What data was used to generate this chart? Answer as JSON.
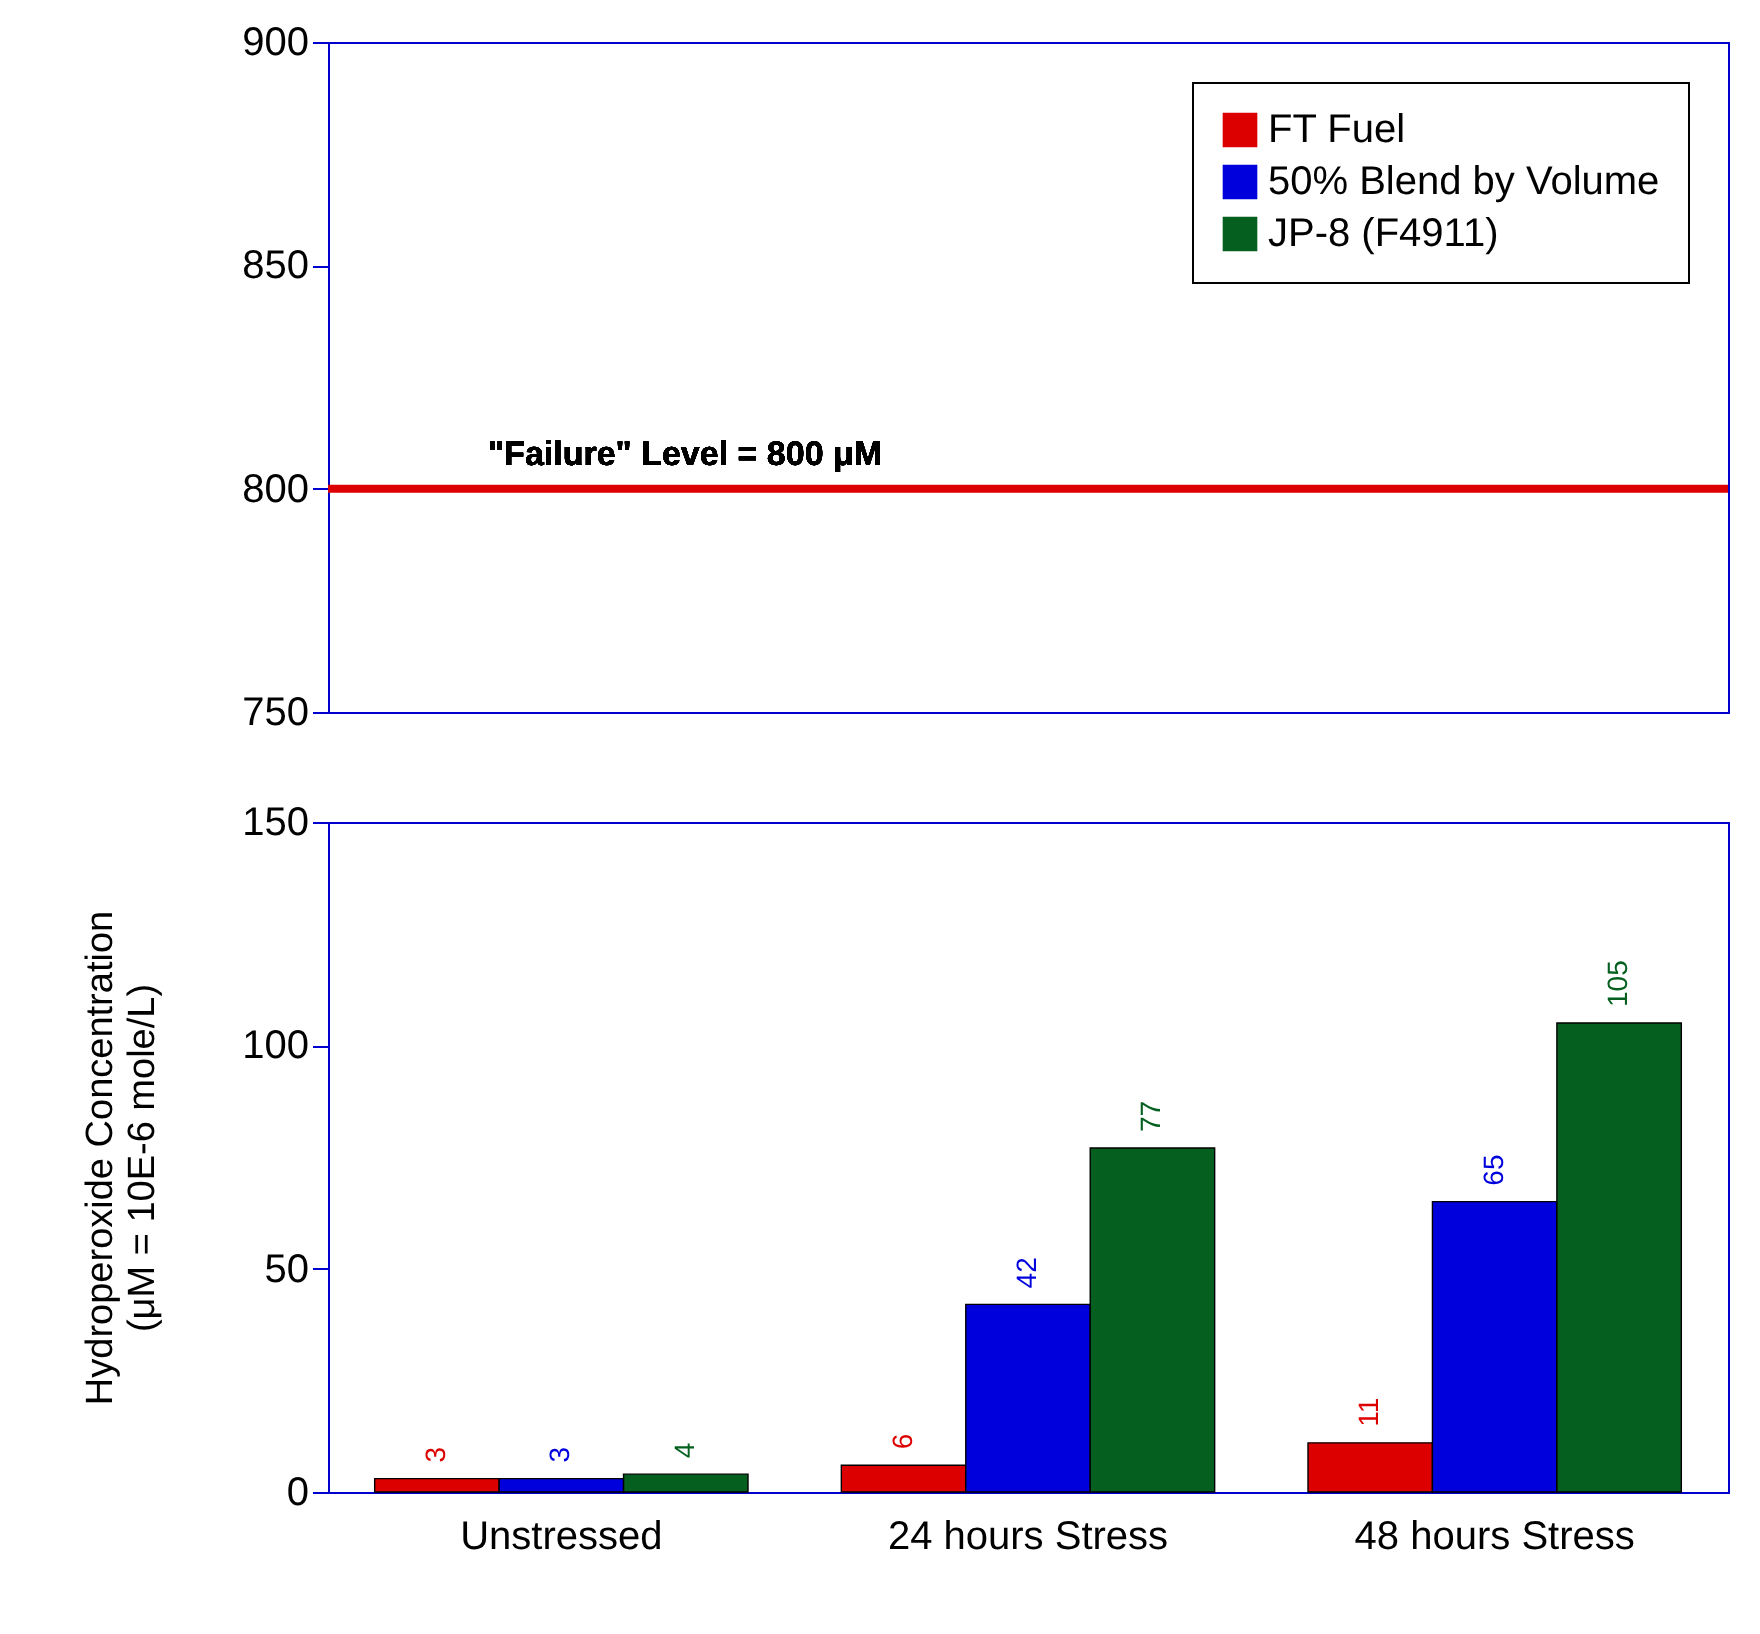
{
  "chart_data": [
    {
      "type": "bar",
      "categories": [
        null,
        null,
        null
      ],
      "series": [
        {
          "name": "FT Fuel",
          "color": "#dd0000",
          "values": [
            null,
            null,
            null
          ]
        },
        {
          "name": "50% Blend by Volume",
          "color": "#0000dd",
          "values": [
            null,
            null,
            null
          ]
        },
        {
          "name": "JP-8 (F4911)",
          "color": "#056020",
          "values": [
            null,
            null,
            null
          ]
        }
      ],
      "ylim": [
        750,
        900
      ],
      "yticks": [
        750,
        800,
        850,
        900
      ],
      "tick_labels": "y",
      "legend": "top right",
      "ref_lines": [
        {
          "axis": "y",
          "value": 800,
          "label": "\"Failure\" Level = 800 μM",
          "color": "#dd0000"
        }
      ]
    },
    {
      "type": "bar",
      "categories": [
        "Unstressed",
        "24 hours Stress",
        "48 hours Stress"
      ],
      "series": [
        {
          "color": "#dd0000",
          "values": [
            3,
            6,
            11
          ]
        },
        {
          "color": "#0000dd",
          "values": [
            3,
            42,
            65
          ]
        },
        {
          "color": "#056020",
          "values": [
            4,
            77,
            105
          ]
        }
      ],
      "ylim": [
        0,
        150
      ],
      "yticks": [
        0,
        50,
        100,
        150
      ],
      "ylabel": "Hydroperoxide Concentration\n(μM = 10E-6 mole/L)",
      "data_labels": true
    }
  ]
}
